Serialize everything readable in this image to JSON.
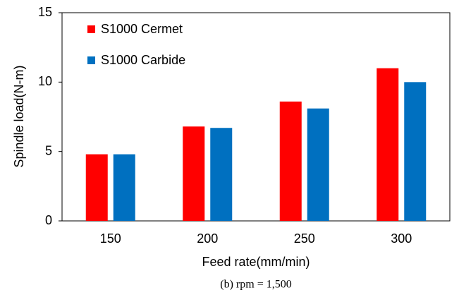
{
  "chart_data": {
    "type": "bar",
    "y_label": "Spindle load(N-m)",
    "x_label": "Feed rate(mm/min)",
    "caption": "(b) rpm = 1,500",
    "categories": [
      "150",
      "200",
      "250",
      "300"
    ],
    "series": [
      {
        "name": "S1000 Cermet",
        "color": "#ff0000",
        "values": [
          4.8,
          6.8,
          8.6,
          11.0
        ]
      },
      {
        "name": "S1000 Carbide",
        "color": "#0070c0",
        "values": [
          4.8,
          6.7,
          8.1,
          10.0
        ]
      }
    ],
    "ylim": [
      0,
      15
    ],
    "yticks": [
      0,
      5,
      10,
      15
    ],
    "legend": "upper-left"
  }
}
